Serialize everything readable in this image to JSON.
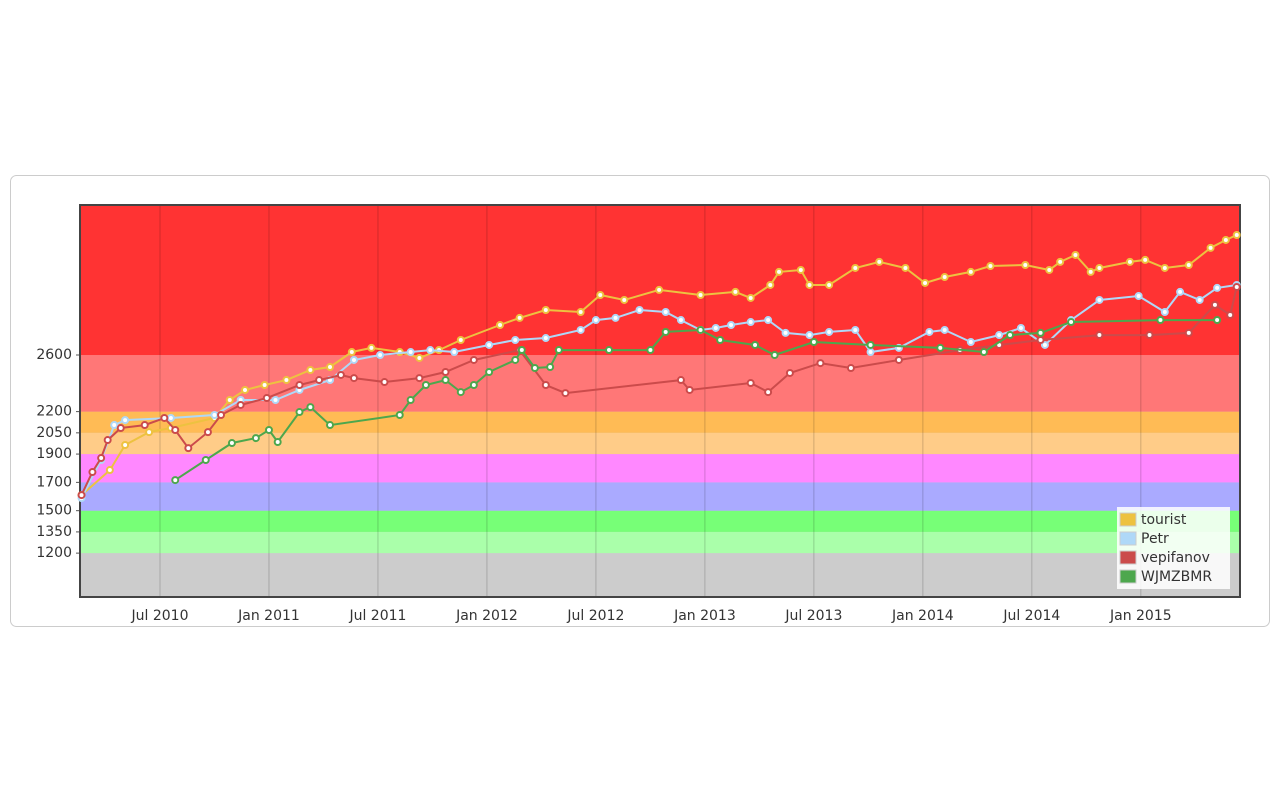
{
  "chart_data": {
    "type": "line",
    "xlim": [
      2010.133,
      2015.455
    ],
    "ylim": [
      890,
      3660
    ],
    "xticks": [
      {
        "value": 2010.5,
        "label": "Jul 2010"
      },
      {
        "value": 2011.0,
        "label": "Jan 2011"
      },
      {
        "value": 2011.5,
        "label": "Jul 2011"
      },
      {
        "value": 2012.0,
        "label": "Jan 2012"
      },
      {
        "value": 2012.5,
        "label": "Jul 2012"
      },
      {
        "value": 2013.0,
        "label": "Jan 2013"
      },
      {
        "value": 2013.5,
        "label": "Jul 2013"
      },
      {
        "value": 2014.0,
        "label": "Jan 2014"
      },
      {
        "value": 2014.5,
        "label": "Jul 2014"
      },
      {
        "value": 2015.0,
        "label": "Jan 2015"
      }
    ],
    "yticks": [
      1200,
      1350,
      1500,
      1700,
      1900,
      2050,
      2200,
      2600
    ],
    "grid": true,
    "legend": "lower right",
    "plot_background": "#cccccc",
    "bands": [
      {
        "from": 1200,
        "color": "#aaffaa"
      },
      {
        "from": 1350,
        "color": "#77ff77"
      },
      {
        "from": 1500,
        "color": "#aaaaff"
      },
      {
        "from": 1700,
        "color": "#ff88ff"
      },
      {
        "from": 1900,
        "color": "#ffcc88"
      },
      {
        "from": 2050,
        "color": "#ffbb55"
      },
      {
        "from": 2200,
        "color": "#ff7777"
      },
      {
        "from": 2600,
        "color": "#ff3333"
      }
    ],
    "series": [
      {
        "name": "tourist",
        "color": "#edc240",
        "x": [
          2010.14,
          2010.27,
          2010.34,
          2010.45,
          2010.55,
          2010.75,
          2010.82,
          2010.89,
          2010.98,
          2011.08,
          2011.19,
          2011.28,
          2011.38,
          2011.47,
          2011.6,
          2011.69,
          2011.78,
          2011.88,
          2012.06,
          2012.15,
          2012.27,
          2012.43,
          2012.52,
          2012.63,
          2012.79,
          2012.98,
          2013.14,
          2013.21,
          2013.3,
          2013.34,
          2013.44,
          2013.48,
          2013.57,
          2013.69,
          2013.8,
          2013.92,
          2014.01,
          2014.1,
          2014.22,
          2014.31,
          2014.47,
          2014.58,
          2014.63,
          2014.7,
          2014.77,
          2014.81,
          2014.95,
          2015.02,
          2015.11,
          2015.22,
          2015.32,
          2015.39,
          2015.44
        ],
        "values": [
          1610,
          1787,
          1964,
          2055,
          2084,
          2155,
          2282,
          2353,
          2388,
          2423,
          2494,
          2515,
          2621,
          2650,
          2621,
          2579,
          2635,
          2706,
          2812,
          2862,
          2918,
          2904,
          3024,
          2989,
          3060,
          3024,
          3046,
          3003,
          3095,
          3187,
          3201,
          3095,
          3095,
          3215,
          3258,
          3215,
          3109,
          3151,
          3187,
          3229,
          3236,
          3201,
          3258,
          3307,
          3187,
          3215,
          3258,
          3272,
          3215,
          3236,
          3357,
          3413,
          3448
        ]
      },
      {
        "name": "Petr",
        "color": "#afd8f8",
        "x": [
          2010.14,
          2010.23,
          2010.29,
          2010.34,
          2010.55,
          2010.75,
          2010.87,
          2011.03,
          2011.14,
          2011.28,
          2011.39,
          2011.51,
          2011.65,
          2011.74,
          2011.85,
          2012.01,
          2012.13,
          2012.27,
          2012.43,
          2012.5,
          2012.59,
          2012.7,
          2012.82,
          2012.89,
          2012.98,
          2013.05,
          2013.12,
          2013.21,
          2013.29,
          2013.37,
          2013.48,
          2013.57,
          2013.69,
          2013.76,
          2013.89,
          2014.03,
          2014.1,
          2014.22,
          2014.35,
          2014.45,
          2014.56,
          2014.68,
          2014.81,
          2014.99,
          2015.11,
          2015.18,
          2015.27,
          2015.35,
          2015.44
        ],
        "values": [
          1589,
          1858,
          2105,
          2140,
          2155,
          2176,
          2282,
          2282,
          2353,
          2423,
          2565,
          2600,
          2621,
          2635,
          2621,
          2671,
          2706,
          2720,
          2777,
          2847,
          2862,
          2918,
          2904,
          2847,
          2777,
          2791,
          2812,
          2833,
          2847,
          2756,
          2741,
          2763,
          2777,
          2621,
          2650,
          2763,
          2777,
          2692,
          2741,
          2791,
          2671,
          2847,
          2989,
          3017,
          2904,
          3046,
          2989,
          3074,
          3095
        ]
      },
      {
        "name": "vepifanov",
        "color": "#cb4b4b",
        "x": [
          2010.14,
          2010.19,
          2010.23,
          2010.26,
          2010.32,
          2010.43,
          2010.52,
          2010.57,
          2010.63,
          2010.72,
          2010.78,
          2010.87,
          2010.99,
          2011.14,
          2011.23,
          2011.33,
          2011.39,
          2011.53,
          2011.69,
          2011.81,
          2011.94,
          2012.15,
          2012.27,
          2012.36,
          2012.89,
          2012.93,
          2013.21,
          2013.29,
          2013.39,
          2013.53,
          2013.67,
          2013.89,
          2014.17,
          2014.35,
          2014.54,
          2014.81,
          2015.04,
          2015.22,
          2015.34,
          2015.41,
          2015.44
        ],
        "values": [
          1610,
          1773,
          1872,
          1999,
          2084,
          2105,
          2155,
          2070,
          1942,
          2055,
          2176,
          2247,
          2296,
          2388,
          2423,
          2459,
          2437,
          2409,
          2437,
          2480,
          2565,
          2635,
          2388,
          2331,
          2423,
          2353,
          2402,
          2338,
          2473,
          2543,
          2508,
          2565,
          2635,
          2671,
          2706,
          2741,
          2741,
          2756,
          2954,
          2883,
          3081
        ]
      },
      {
        "name": "WJMZBMR",
        "color": "#4da74d",
        "x": [
          2010.57,
          2010.71,
          2010.83,
          2010.94,
          2011.0,
          2011.04,
          2011.14,
          2011.19,
          2011.28,
          2011.6,
          2011.65,
          2011.72,
          2011.81,
          2011.88,
          2011.94,
          2012.01,
          2012.13,
          2012.16,
          2012.22,
          2012.29,
          2012.33,
          2012.56,
          2012.75,
          2012.82,
          2012.98,
          2013.07,
          2013.23,
          2013.32,
          2013.5,
          2013.76,
          2014.08,
          2014.28,
          2014.4,
          2014.54,
          2014.68,
          2015.09,
          2015.35
        ],
        "values": [
          1716,
          1858,
          1978,
          2013,
          2070,
          1985,
          2197,
          2232,
          2105,
          2176,
          2282,
          2388,
          2423,
          2338,
          2388,
          2480,
          2565,
          2635,
          2508,
          2515,
          2635,
          2635,
          2635,
          2763,
          2777,
          2706,
          2671,
          2600,
          2692,
          2671,
          2650,
          2621,
          2741,
          2756,
          2833,
          2847,
          2847
        ]
      }
    ]
  }
}
